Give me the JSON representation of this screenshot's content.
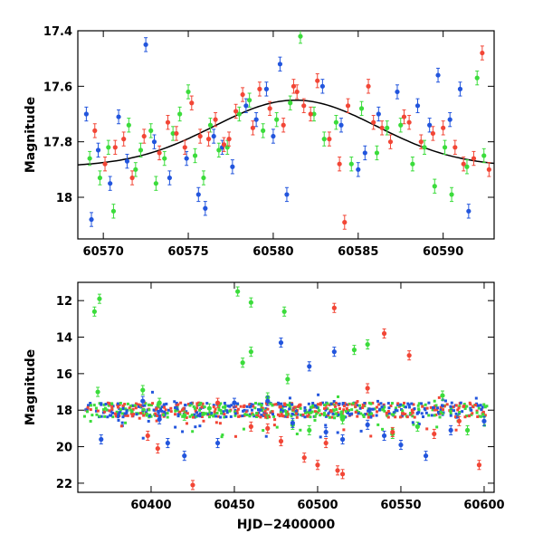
{
  "chart_data": [
    {
      "type": "scatter",
      "panel": "top",
      "xlabel": "",
      "ylabel": "Magnitude",
      "xlim": [
        60568.5,
        60593.0
      ],
      "ylim": [
        18.15,
        17.4
      ],
      "inverted_y": true,
      "xticks": [
        60570,
        60575,
        60580,
        60585,
        60590
      ],
      "yticks": [
        17.4,
        17.6,
        17.8,
        18
      ],
      "ytick_labels": [
        "17.4",
        "17.6",
        "17.8",
        "18"
      ],
      "model_curve": {
        "center": 60581.3,
        "peak": 17.65,
        "base": 17.89,
        "sigma": 4.8,
        "color": "#000000"
      },
      "series": [
        {
          "color": "#3bdc3b",
          "points": [
            [
              60569.2,
              17.86
            ],
            [
              60569.8,
              17.93
            ],
            [
              60570.3,
              17.82
            ],
            [
              60570.6,
              18.05
            ],
            [
              60571.5,
              17.74
            ],
            [
              60571.9,
              17.9
            ],
            [
              60572.2,
              17.83
            ],
            [
              60572.8,
              17.76
            ],
            [
              60573.1,
              17.95
            ],
            [
              60573.6,
              17.86
            ],
            [
              60574.1,
              17.77
            ],
            [
              60574.5,
              17.7
            ],
            [
              60575.0,
              17.62
            ],
            [
              60575.4,
              17.85
            ],
            [
              60575.9,
              17.93
            ],
            [
              60576.3,
              17.74
            ],
            [
              60576.8,
              17.83
            ],
            [
              60577.3,
              17.82
            ],
            [
              60578.0,
              17.7
            ],
            [
              60578.6,
              17.65
            ],
            [
              60579.4,
              17.76
            ],
            [
              60580.2,
              17.72
            ],
            [
              60581.0,
              17.66
            ],
            [
              60581.6,
              17.42
            ],
            [
              60582.4,
              17.7
            ],
            [
              60583.0,
              17.79
            ],
            [
              60583.7,
              17.73
            ],
            [
              60584.6,
              17.88
            ],
            [
              60585.2,
              17.68
            ],
            [
              60586.1,
              17.84
            ],
            [
              60586.7,
              17.75
            ],
            [
              60587.5,
              17.74
            ],
            [
              60588.2,
              17.88
            ],
            [
              60588.9,
              17.82
            ],
            [
              60589.5,
              17.96
            ],
            [
              60590.1,
              17.82
            ],
            [
              60590.5,
              17.99
            ],
            [
              60591.4,
              17.89
            ],
            [
              60592.0,
              17.57
            ],
            [
              60592.4,
              17.85
            ]
          ]
        },
        {
          "color": "#2255dd",
          "points": [
            [
              60569.0,
              17.7
            ],
            [
              60569.3,
              18.08
            ],
            [
              60569.7,
              17.83
            ],
            [
              60570.4,
              17.95
            ],
            [
              60570.9,
              17.71
            ],
            [
              60571.4,
              17.87
            ],
            [
              60572.5,
              17.45
            ],
            [
              60573.0,
              17.8
            ],
            [
              60573.9,
              17.93
            ],
            [
              60574.9,
              17.86
            ],
            [
              60575.6,
              17.99
            ],
            [
              60576.0,
              18.04
            ],
            [
              60576.5,
              17.78
            ],
            [
              60577.0,
              17.82
            ],
            [
              60577.6,
              17.89
            ],
            [
              60578.4,
              17.67
            ],
            [
              60579.0,
              17.72
            ],
            [
              60579.6,
              17.61
            ],
            [
              60580.0,
              17.78
            ],
            [
              60580.4,
              17.52
            ],
            [
              60580.8,
              17.99
            ],
            [
              60582.9,
              17.6
            ],
            [
              60584.0,
              17.74
            ],
            [
              60585.0,
              17.9
            ],
            [
              60585.4,
              17.84
            ],
            [
              60586.2,
              17.7
            ],
            [
              60587.3,
              17.62
            ],
            [
              60588.5,
              17.67
            ],
            [
              60589.2,
              17.74
            ],
            [
              60589.7,
              17.56
            ],
            [
              60590.4,
              17.72
            ],
            [
              60591.0,
              17.61
            ],
            [
              60591.5,
              18.05
            ]
          ]
        },
        {
          "color": "#f24636",
          "points": [
            [
              60569.5,
              17.76
            ],
            [
              60570.1,
              17.88
            ],
            [
              60570.7,
              17.82
            ],
            [
              60571.2,
              17.79
            ],
            [
              60571.7,
              17.93
            ],
            [
              60572.4,
              17.78
            ],
            [
              60573.3,
              17.84
            ],
            [
              60573.8,
              17.73
            ],
            [
              60574.3,
              17.77
            ],
            [
              60574.8,
              17.82
            ],
            [
              60575.2,
              17.66
            ],
            [
              60575.7,
              17.78
            ],
            [
              60576.2,
              17.79
            ],
            [
              60576.6,
              17.72
            ],
            [
              60577.1,
              17.81
            ],
            [
              60577.4,
              17.79
            ],
            [
              60577.8,
              17.69
            ],
            [
              60578.2,
              17.63
            ],
            [
              60578.8,
              17.75
            ],
            [
              60579.2,
              17.61
            ],
            [
              60579.8,
              17.68
            ],
            [
              60580.6,
              17.74
            ],
            [
              60581.2,
              17.6
            ],
            [
              60581.4,
              17.62
            ],
            [
              60581.8,
              17.67
            ],
            [
              60582.2,
              17.7
            ],
            [
              60582.6,
              17.58
            ],
            [
              60583.3,
              17.79
            ],
            [
              60583.9,
              17.88
            ],
            [
              60584.2,
              18.09
            ],
            [
              60584.4,
              17.67
            ],
            [
              60585.6,
              17.6
            ],
            [
              60585.9,
              17.73
            ],
            [
              60586.4,
              17.75
            ],
            [
              60586.9,
              17.8
            ],
            [
              60587.7,
              17.71
            ],
            [
              60588.0,
              17.73
            ],
            [
              60588.7,
              17.8
            ],
            [
              60589.4,
              17.77
            ],
            [
              60590.0,
              17.75
            ],
            [
              60590.7,
              17.82
            ],
            [
              60591.2,
              17.88
            ],
            [
              60591.8,
              17.86
            ],
            [
              60592.3,
              17.48
            ],
            [
              60592.7,
              17.9
            ]
          ]
        }
      ]
    },
    {
      "type": "scatter",
      "panel": "bottom",
      "xlabel": "HJD−2400000",
      "ylabel": "Magnitude",
      "xlim": [
        60356,
        60606
      ],
      "ylim": [
        22.5,
        11.0
      ],
      "inverted_y": true,
      "xticks": [
        60400,
        60450,
        60500,
        60550,
        60600
      ],
      "yticks": [
        12,
        14,
        16,
        18,
        20,
        22
      ],
      "series": [
        {
          "color": "#3bdc3b",
          "points": [
            [
              60366,
              12.6
            ],
            [
              60369,
              11.9
            ],
            [
              60368,
              17.0
            ],
            [
              60395,
              16.9
            ],
            [
              60405,
              17.6
            ],
            [
              60420,
              18.3
            ],
            [
              60435,
              17.9
            ],
            [
              60452,
              11.5
            ],
            [
              60455,
              15.4
            ],
            [
              60460,
              14.8
            ],
            [
              60460,
              12.1
            ],
            [
              60470,
              17.3
            ],
            [
              60480,
              12.6
            ],
            [
              60482,
              16.3
            ],
            [
              60485,
              18.8
            ],
            [
              60495,
              19.1
            ],
            [
              60515,
              18.5
            ],
            [
              60522,
              14.7
            ],
            [
              60530,
              14.4
            ],
            [
              60545,
              19.3
            ],
            [
              60560,
              18.9
            ],
            [
              60575,
              17.2
            ],
            [
              60590,
              19.1
            ]
          ]
        },
        {
          "color": "#2255dd",
          "points": [
            [
              60370,
              19.6
            ],
            [
              60395,
              17.5
            ],
            [
              60405,
              18.5
            ],
            [
              60410,
              19.8
            ],
            [
              60420,
              20.5
            ],
            [
              60440,
              19.8
            ],
            [
              60450,
              17.6
            ],
            [
              60470,
              17.5
            ],
            [
              60478,
              14.3
            ],
            [
              60485,
              18.7
            ],
            [
              60495,
              15.6
            ],
            [
              60505,
              19.2
            ],
            [
              60510,
              14.8
            ],
            [
              60515,
              19.6
            ],
            [
              60530,
              18.8
            ],
            [
              60540,
              19.4
            ],
            [
              60550,
              19.9
            ],
            [
              60565,
              20.5
            ],
            [
              60580,
              19.1
            ],
            [
              60600,
              18.6
            ]
          ]
        },
        {
          "color": "#f24636",
          "points": [
            [
              60398,
              19.4
            ],
            [
              60404,
              20.1
            ],
            [
              60425,
              22.1
            ],
            [
              60440,
              17.6
            ],
            [
              60460,
              18.9
            ],
            [
              60470,
              19.0
            ],
            [
              60478,
              19.7
            ],
            [
              60492,
              20.6
            ],
            [
              60500,
              21.0
            ],
            [
              60505,
              19.8
            ],
            [
              60510,
              12.4
            ],
            [
              60512,
              21.3
            ],
            [
              60515,
              21.5
            ],
            [
              60530,
              16.8
            ],
            [
              60540,
              13.8
            ],
            [
              60545,
              19.2
            ],
            [
              60555,
              15.0
            ],
            [
              60570,
              19.3
            ],
            [
              60585,
              18.6
            ],
            [
              60597,
              21.0
            ]
          ]
        }
      ]
    }
  ]
}
